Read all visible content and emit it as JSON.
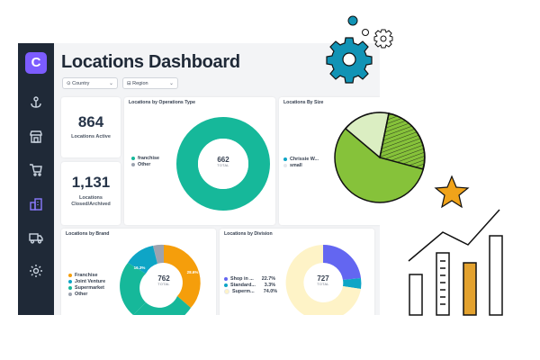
{
  "app": {
    "logo_letter": "C",
    "title": "Locations Dashboard"
  },
  "sidebar": {
    "items": [
      {
        "icon": "anchor-icon",
        "label": ""
      },
      {
        "icon": "storefront-icon",
        "label": ""
      },
      {
        "icon": "cart-icon",
        "label": ""
      },
      {
        "icon": "buildings-icon",
        "label": "",
        "active": true
      },
      {
        "icon": "truck-icon",
        "label": ""
      },
      {
        "icon": "gear-icon",
        "label": ""
      }
    ]
  },
  "filters": {
    "country": "Country",
    "region": "Region"
  },
  "kpis": {
    "active": {
      "value": "864",
      "label": "Locations Active"
    },
    "closed": {
      "value": "1,131",
      "label_line1": "Locations",
      "label_line2": "Closed/Archived"
    }
  },
  "cards": {
    "ops_type": {
      "title": "Locations by Operations Type",
      "total": "662",
      "total_label": "TOTAL",
      "legend": [
        {
          "name": "franchise",
          "color": "#16b89a"
        },
        {
          "name": "Other",
          "color": "#9ca3af"
        }
      ]
    },
    "size": {
      "title": "Locations By Size",
      "legend": [
        {
          "name": "Chrissie W...",
          "color": "#0ea5c6"
        },
        {
          "name": "small",
          "color": "#e5e7eb"
        }
      ]
    },
    "brand": {
      "title": "Locations by Brand",
      "total": "762",
      "total_label": "TOTAL",
      "legend": [
        {
          "name": "Franchise",
          "color": "#f59e0b"
        },
        {
          "name": "Joint Venture",
          "color": "#0ea5c6"
        },
        {
          "name": "Supermarket",
          "color": "#16b89a"
        },
        {
          "name": "Other",
          "color": "#9ca3af"
        }
      ],
      "labels": {
        "franchise": "28.6%",
        "joint_venture": "16.3%"
      }
    },
    "division": {
      "title": "Locations by Division",
      "total": "727",
      "total_label": "TOTAL",
      "legend": [
        {
          "name": "Shop in ...",
          "pct": "22.7%",
          "color": "#6366f1"
        },
        {
          "name": "Standard...",
          "pct": "3.3%",
          "color": "#0ea5c6"
        },
        {
          "name": "Superm...",
          "pct": "74.0%",
          "color": "#fef3c7"
        }
      ]
    }
  },
  "colors": {
    "accent": "#7c5cff",
    "teal": "#16b89a",
    "orange": "#f59e0b",
    "blue": "#0ea5c6",
    "indigo": "#6366f1",
    "gear": "#1193b5",
    "pie_green": "#86c23a",
    "star": "#f0a31a"
  }
}
